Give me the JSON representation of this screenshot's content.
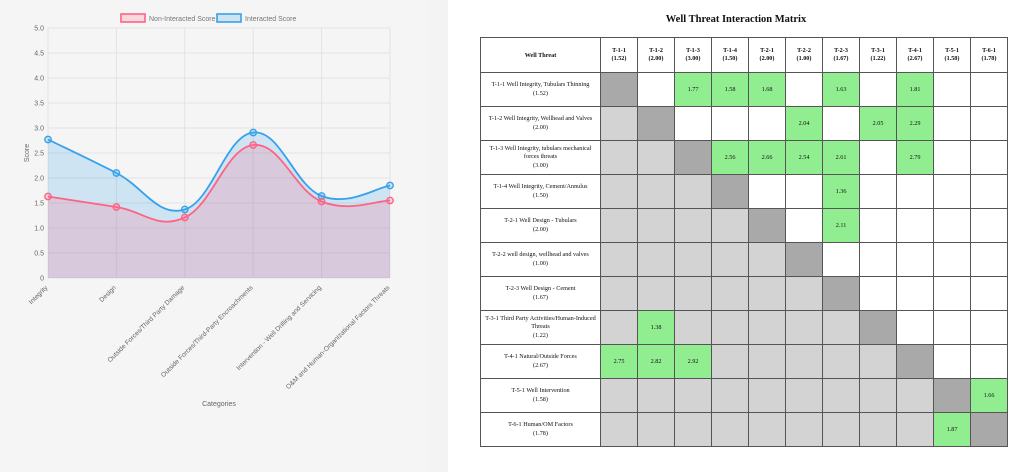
{
  "chart_data": {
    "type": "line",
    "title": "",
    "xlabel": "Categories",
    "ylabel": "Score",
    "ylim": [
      0,
      5
    ],
    "yticks": [
      "0",
      "0.5",
      "1.0",
      "1.5",
      "2.0",
      "2.5",
      "3.0",
      "3.5",
      "4.0",
      "4.5",
      "5.0"
    ],
    "categories": [
      "Integrity",
      "Design",
      "Outside Forces/Third Party Damage",
      "Outside Forces/Third-Party Encroachments",
      "Intervention - Well Drilling and Servicing",
      "O&M and Human-Organizational Factors Threats"
    ],
    "series": [
      {
        "name": "Non-Interacted Score",
        "values": [
          1.63,
          1.42,
          1.21,
          2.66,
          1.53,
          1.55
        ],
        "color": "#ff6384",
        "fill": "rgba(255,99,132,0.2)"
      },
      {
        "name": "Interacted Score",
        "values": [
          2.77,
          2.1,
          1.37,
          2.91,
          1.64,
          1.85
        ],
        "color": "#36a2eb",
        "fill": "rgba(54,162,235,0.2)"
      }
    ],
    "legend": "top-center",
    "grid": true
  },
  "matrix": {
    "title": "Well Threat Interaction Matrix",
    "corner_label": "Well Threat",
    "columns": [
      {
        "id": "T-1-1",
        "score": "(1.52)"
      },
      {
        "id": "T-1-2",
        "score": "(2.00)"
      },
      {
        "id": "T-1-3",
        "score": "(3.00)"
      },
      {
        "id": "T-1-4",
        "score": "(1.50)"
      },
      {
        "id": "T-2-1",
        "score": "(2.00)"
      },
      {
        "id": "T-2-2",
        "score": "(1.00)"
      },
      {
        "id": "T-2-3",
        "score": "(1.67)"
      },
      {
        "id": "T-3-1",
        "score": "(1.22)"
      },
      {
        "id": "T-4-1",
        "score": "(2.67)"
      },
      {
        "id": "T-5-1",
        "score": "(1.58)"
      },
      {
        "id": "T-6-1",
        "score": "(1.78)"
      }
    ],
    "rows": [
      {
        "label": "T-1-1 Well Integrity, Tubulars Thinning",
        "score": "(1.52)",
        "values": [
          "",
          "",
          "1.77",
          "1.58",
          "1.68",
          "",
          "1.63",
          "",
          "1.81",
          "",
          ""
        ]
      },
      {
        "label": "T-1-2 Well Integrity, Wellhead and Valves",
        "score": "(2.00)",
        "values": [
          "",
          "",
          "",
          "",
          "",
          "2.04",
          "",
          "2.05",
          "2.29",
          "",
          ""
        ]
      },
      {
        "label": "T-1-3 Well Integrity, tubulars mechanical forces threats",
        "score": "(3.00)",
        "values": [
          "",
          "",
          "",
          "2.56",
          "2.66",
          "2.54",
          "2.61",
          "",
          "2.79",
          "",
          ""
        ]
      },
      {
        "label": "T-1-4 Well Integrity, Cement/Annulus",
        "score": "(1.50)",
        "values": [
          "",
          "",
          "",
          "",
          "",
          "",
          "1.36",
          "",
          "",
          "",
          ""
        ]
      },
      {
        "label": "T-2-1 Well Design - Tubulars",
        "score": "(2.00)",
        "values": [
          "",
          "",
          "",
          "",
          "",
          "",
          "2.11",
          "",
          "",
          "",
          ""
        ]
      },
      {
        "label": "T-2-2 well design, wellhead and valves",
        "score": "(1.00)",
        "values": [
          "",
          "",
          "",
          "",
          "",
          "",
          "",
          "",
          "",
          "",
          ""
        ]
      },
      {
        "label": "T-2-3 Well Design - Cement",
        "score": "(1.67)",
        "values": [
          "",
          "",
          "",
          "",
          "",
          "",
          "",
          "",
          "",
          "",
          ""
        ]
      },
      {
        "label": "T-3-1 Third Party Activities/Human-Induced Threats",
        "score": "(1.22)",
        "values": [
          "",
          "1.38",
          "",
          "",
          "",
          "",
          "",
          "",
          "",
          "",
          ""
        ]
      },
      {
        "label": "T-4-1 Natural/Outside Forces",
        "score": "(2.67)",
        "values": [
          "2.75",
          "2.82",
          "2.92",
          "",
          "",
          "",
          "",
          "",
          "",
          "",
          ""
        ]
      },
      {
        "label": "T-5-1 Well Intervention",
        "score": "(1.58)",
        "values": [
          "",
          "",
          "",
          "",
          "",
          "",
          "",
          "",
          "",
          "",
          "1.66"
        ]
      },
      {
        "label": "T-6-1 Human/OM Factors",
        "score": "(1.78)",
        "values": [
          "",
          "",
          "",
          "",
          "",
          "",
          "",
          "",
          "",
          "1.87",
          ""
        ]
      }
    ]
  }
}
